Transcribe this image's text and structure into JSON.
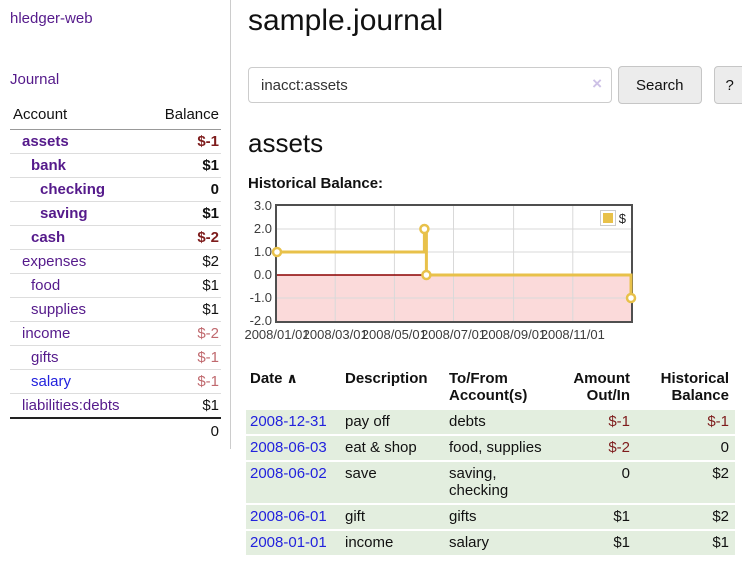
{
  "app": {
    "title": "hledger-web"
  },
  "colors": {
    "link_purple": "#551a8b",
    "link_blue": "#2222dd",
    "negative_strong": "#7e1c1c",
    "negative_light": "#c0696e",
    "register_row_green": "#e3eedf",
    "chart_line_gold": "#e8c14a",
    "chart_negative_region": "#fbdada",
    "chart_zero_line": "#8b0000"
  },
  "sidebar": {
    "journal_link": "Journal",
    "accounts_table": {
      "headers": {
        "account": "Account",
        "balance": "Balance"
      },
      "rows": [
        {
          "name": "assets",
          "indent": 1,
          "bold": true,
          "link_color": "purple",
          "balance": "$-1",
          "balance_style": "neg-strong"
        },
        {
          "name": "bank",
          "indent": 2,
          "bold": true,
          "link_color": "purple",
          "balance": "$1",
          "balance_style": "pos"
        },
        {
          "name": "checking",
          "indent": 3,
          "bold": true,
          "link_color": "purple",
          "balance": "0",
          "balance_style": "pos"
        },
        {
          "name": "saving",
          "indent": 3,
          "bold": true,
          "link_color": "purple",
          "balance": "$1",
          "balance_style": "pos"
        },
        {
          "name": "cash",
          "indent": 2,
          "bold": true,
          "link_color": "purple",
          "balance": "$-2",
          "balance_style": "neg-strong"
        },
        {
          "name": "expenses",
          "indent": 1,
          "bold": false,
          "link_color": "purple",
          "balance": "$2",
          "balance_style": "pos"
        },
        {
          "name": "food",
          "indent": 2,
          "bold": false,
          "link_color": "purple",
          "balance": "$1",
          "balance_style": "pos"
        },
        {
          "name": "supplies",
          "indent": 2,
          "bold": false,
          "link_color": "purple",
          "balance": "$1",
          "balance_style": "pos"
        },
        {
          "name": "income",
          "indent": 1,
          "bold": false,
          "link_color": "purple",
          "balance": "$-2",
          "balance_style": "neg-light"
        },
        {
          "name": "gifts",
          "indent": 2,
          "bold": false,
          "link_color": "purple",
          "balance": "$-1",
          "balance_style": "neg-light"
        },
        {
          "name": "salary",
          "indent": 2,
          "bold": false,
          "link_color": "blue",
          "balance": "$-1",
          "balance_style": "neg-light"
        },
        {
          "name": "liabilities:debts",
          "indent": 1,
          "bold": false,
          "link_color": "purple",
          "balance": "$1",
          "balance_style": "pos"
        }
      ],
      "total": "0"
    }
  },
  "header": {
    "title": "sample.journal"
  },
  "search": {
    "value": "inacct:assets",
    "clear_icon": "×",
    "button_label": "Search",
    "help_label": "?"
  },
  "account_page": {
    "title": "assets",
    "chart_label": "Historical Balance:"
  },
  "chart_data": {
    "type": "line",
    "step": true,
    "title": "Historical Balance",
    "legend_position": "top-right",
    "grid": true,
    "ylim": [
      -2,
      3
    ],
    "y_ticks": [
      3.0,
      2.0,
      1.0,
      0.0,
      -1.0,
      -2.0
    ],
    "x_ticks": [
      {
        "label": "2008/01/01",
        "t": 0.0
      },
      {
        "label": "2008/03/01",
        "t": 0.1644
      },
      {
        "label": "2008/05/01",
        "t": 0.3315
      },
      {
        "label": "2008/07/01",
        "t": 0.4986
      },
      {
        "label": "2008/09/01",
        "t": 0.6685
      },
      {
        "label": "2008/11/01",
        "t": 0.8356
      }
    ],
    "series": [
      {
        "name": "$",
        "color": "#e8c14a",
        "points": [
          {
            "date": "2008-01-01",
            "t": 0.0,
            "value": 1
          },
          {
            "date": "2008-06-01",
            "t": 0.4164,
            "value": 2
          },
          {
            "date": "2008-06-03",
            "t": 0.4219,
            "value": 0
          },
          {
            "date": "2008-12-31",
            "t": 1.0,
            "value": -1
          }
        ]
      }
    ],
    "negative_region_color": "#fbdada",
    "zero_line_color": "#8b0000",
    "plot_border_color": "#4f4f4f",
    "gridline_color": "#d9d9d9"
  },
  "register_table": {
    "sort_indicator": "∧",
    "headers": [
      "Date",
      "Description",
      "To/From Account(s)",
      "Amount Out/In",
      "Historical Balance"
    ],
    "rows": [
      {
        "date": "2008-12-31",
        "description": "pay off",
        "accounts": "debts",
        "amount": "$-1",
        "amount_negative": true,
        "balance": "$-1",
        "balance_negative": true
      },
      {
        "date": "2008-06-03",
        "description": "eat & shop",
        "accounts": "food, supplies",
        "amount": "$-2",
        "amount_negative": true,
        "balance": "0",
        "balance_negative": false
      },
      {
        "date": "2008-06-02",
        "description": "save",
        "accounts": "saving, checking",
        "amount": "0",
        "amount_negative": false,
        "balance": "$2",
        "balance_negative": false
      },
      {
        "date": "2008-06-01",
        "description": "gift",
        "accounts": "gifts",
        "amount": "$1",
        "amount_negative": false,
        "balance": "$2",
        "balance_negative": false
      },
      {
        "date": "2008-01-01",
        "description": "income",
        "accounts": "salary",
        "amount": "$1",
        "amount_negative": false,
        "balance": "$1",
        "balance_negative": false
      }
    ]
  }
}
